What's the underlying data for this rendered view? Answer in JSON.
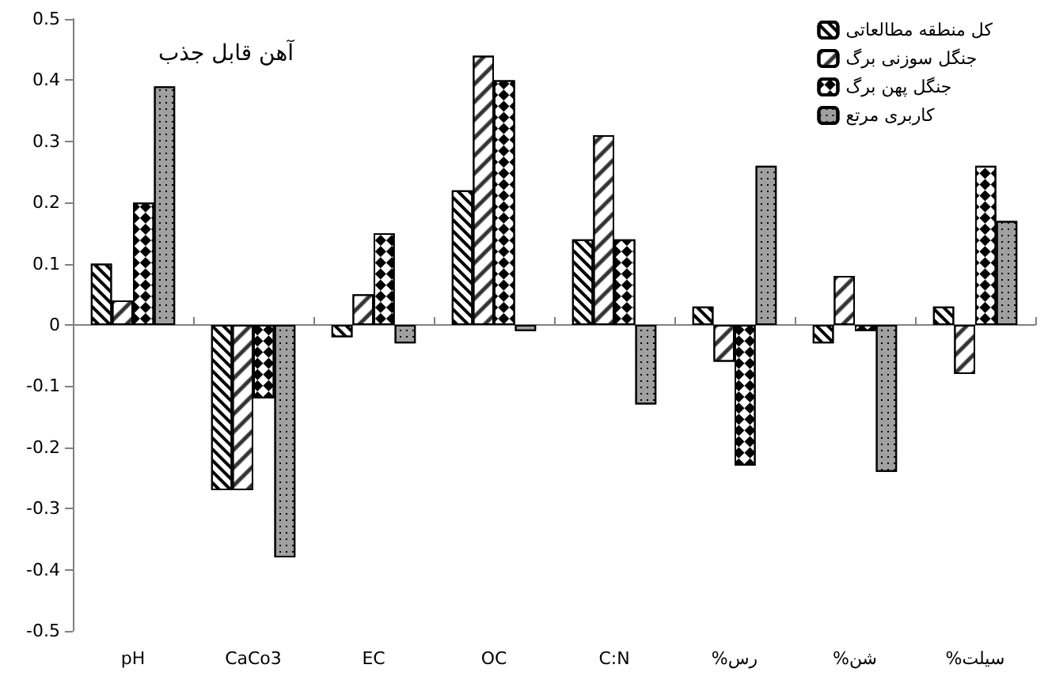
{
  "chart_data": {
    "type": "bar",
    "title": "آهن قابل جذب",
    "categories": [
      "pH",
      "CaCo3",
      "EC",
      "OC",
      "C:N",
      "%رس",
      "%شن",
      "%سیلت"
    ],
    "series": [
      {
        "name": "کل منطقه مطالعاتی",
        "color": "#ffffff",
        "values": [
          0.1,
          -0.27,
          -0.02,
          0.22,
          0.14,
          0.03,
          -0.03,
          0.03
        ]
      },
      {
        "name": "جنگل سوزنی برگ",
        "color": "#ffffff",
        "values": [
          0.04,
          -0.27,
          0.05,
          0.44,
          0.31,
          -0.06,
          0.08,
          -0.08
        ]
      },
      {
        "name": "جنگل پهن برگ",
        "color": "#ffffff",
        "values": [
          0.2,
          -0.12,
          0.15,
          0.4,
          0.14,
          -0.23,
          -0.01,
          0.26
        ]
      },
      {
        "name": "کاربری مرتع",
        "color": "#a0a0a0",
        "values": [
          0.39,
          -0.38,
          -0.03,
          -0.01,
          -0.13,
          0.26,
          -0.24,
          0.17
        ]
      }
    ],
    "ylim": [
      -0.5,
      0.5
    ],
    "yticks": [
      -0.5,
      -0.4,
      -0.3,
      -0.2,
      -0.1,
      0,
      0.1,
      0.2,
      0.3,
      0.4,
      0.5
    ],
    "legend": "top right"
  }
}
